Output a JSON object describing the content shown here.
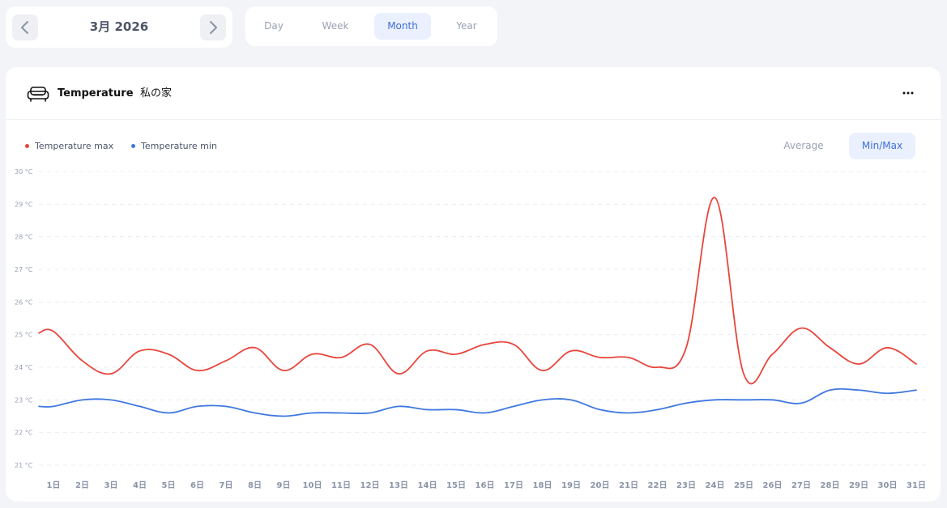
{
  "date_nav": {
    "label": "3月 2026"
  },
  "period_tabs": [
    {
      "label": "Day",
      "active": false
    },
    {
      "label": "Week",
      "active": false
    },
    {
      "label": "Month",
      "active": true
    },
    {
      "label": "Year",
      "active": false
    }
  ],
  "card": {
    "icon": "sofa-icon",
    "title": "Temperature",
    "separator": "-",
    "home_name": "私の家",
    "menu_icon": "more-horizontal-icon"
  },
  "view_modes": [
    {
      "label": "Average",
      "active": false
    },
    {
      "label": "Min/Max",
      "active": true
    }
  ],
  "colors": {
    "max": "#e8453c",
    "min": "#3f78e0",
    "accent": "#3f6fd8"
  },
  "chart_data": {
    "type": "line",
    "x": [
      "1日",
      "2日",
      "3日",
      "4日",
      "5日",
      "6日",
      "7日",
      "8日",
      "9日",
      "10日",
      "11日",
      "12日",
      "13日",
      "14日",
      "15日",
      "16日",
      "17日",
      "18日",
      "19日",
      "20日",
      "21日",
      "22日",
      "23日",
      "24日",
      "25日",
      "26日",
      "27日",
      "28日",
      "29日",
      "30日",
      "31日"
    ],
    "y_ticks": [
      "21 °C",
      "22 °C",
      "23 °C",
      "24 °C",
      "25 °C",
      "26 °C",
      "27 °C",
      "28 °C",
      "29 °C",
      "30 °C"
    ],
    "ylim": [
      21,
      30
    ],
    "grid": true,
    "legend_position": "top-left",
    "series": [
      {
        "name": "Temperature max",
        "color": "#e8453c",
        "values": [
          25.1,
          24.2,
          23.8,
          24.5,
          24.4,
          23.9,
          24.2,
          24.6,
          23.9,
          24.4,
          24.3,
          24.7,
          23.8,
          24.5,
          24.4,
          24.7,
          24.7,
          23.9,
          24.5,
          24.3,
          24.3,
          24.0,
          24.6,
          29.2,
          23.8,
          24.4,
          25.2,
          24.6,
          24.1,
          24.6,
          24.1
        ]
      },
      {
        "name": "Temperature min",
        "color": "#3f78e0",
        "values": [
          22.8,
          23.0,
          23.0,
          22.8,
          22.6,
          22.8,
          22.8,
          22.6,
          22.5,
          22.6,
          22.6,
          22.6,
          22.8,
          22.7,
          22.7,
          22.6,
          22.8,
          23.0,
          23.0,
          22.7,
          22.6,
          22.7,
          22.9,
          23.0,
          23.0,
          23.0,
          22.9,
          23.3,
          23.3,
          23.2,
          23.3
        ]
      }
    ]
  }
}
